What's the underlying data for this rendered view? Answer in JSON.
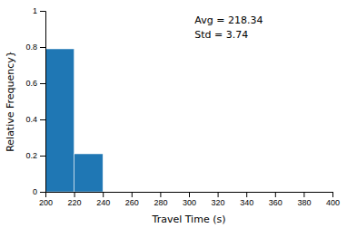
{
  "chart_data": {
    "type": "histogram",
    "xlabel": "Travel Time (s)",
    "ylabel": "Relative Frequency}",
    "bins": [
      200,
      220,
      240
    ],
    "values": [
      0.79,
      0.21
    ],
    "color": "#1f77b4",
    "xlim": [
      200,
      400
    ],
    "ylim": [
      0,
      1
    ],
    "xticks": [
      200,
      220,
      240,
      260,
      280,
      300,
      320,
      340,
      360,
      380,
      400
    ],
    "yticks": [
      0,
      0.2,
      0.4,
      0.6,
      0.8,
      1
    ],
    "annotations": [
      "Avg = 218.34",
      "Std = 3.74"
    ]
  }
}
